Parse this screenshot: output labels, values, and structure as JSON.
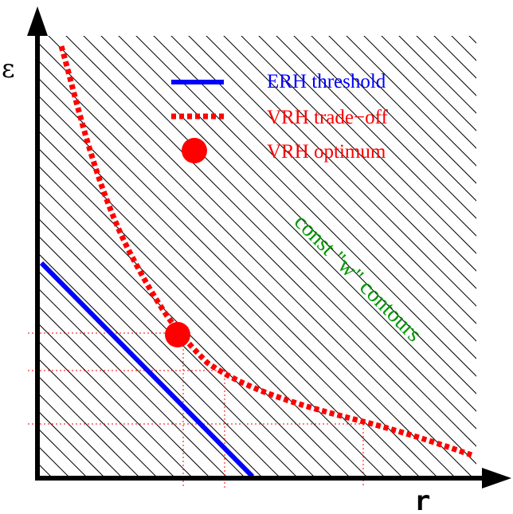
{
  "axes": {
    "y_label": "ε",
    "x_label": "r"
  },
  "legend": {
    "items": [
      {
        "label": "ERH threshold",
        "color": "#0000ff",
        "style": "solid-line"
      },
      {
        "label": "VRH trade−off",
        "color": "#ff0000",
        "style": "dotted-line"
      },
      {
        "label": "VRH optimum",
        "color": "#ff0000",
        "style": "filled-circle"
      }
    ]
  },
  "annotation": {
    "text": "const \"w\" contours",
    "color": "#009900"
  },
  "colors": {
    "hatch": "#000000",
    "guide": "#ff0000",
    "axis": "#000000"
  }
}
